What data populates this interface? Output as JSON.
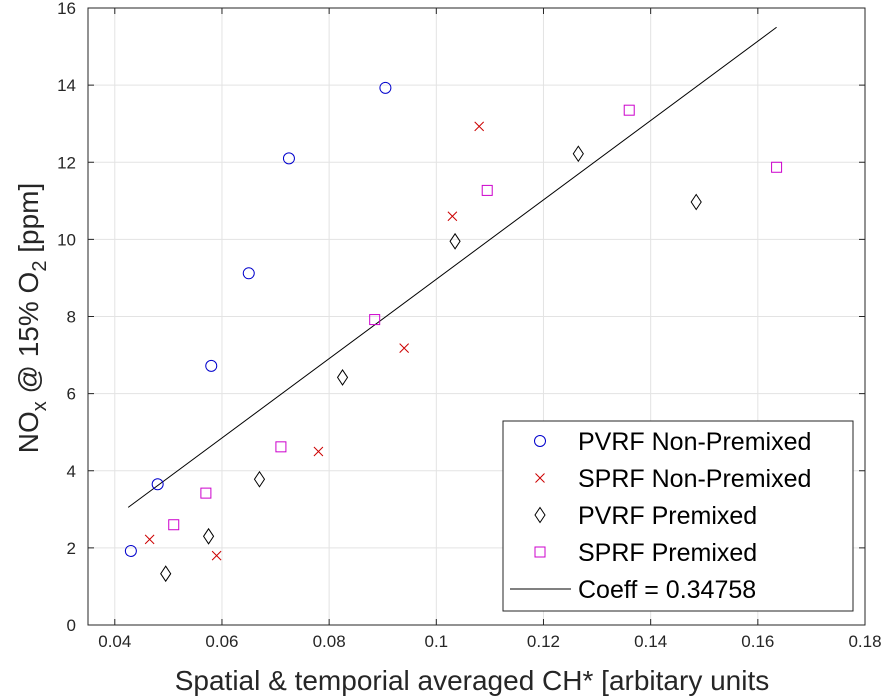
{
  "chart_data": {
    "type": "scatter",
    "title": "",
    "xlabel": "Spatial & temporial averaged CH* [arbitary units",
    "ylabel": {
      "main": "NO",
      "sub1": "x",
      "mid": " @ 15% O",
      "sub2": "2",
      "end": " [ppm]"
    },
    "xlim": [
      0.035,
      0.18
    ],
    "ylim": [
      0,
      16
    ],
    "xticks": [
      0.04,
      0.06,
      0.08,
      0.1,
      0.12,
      0.14,
      0.16,
      0.18
    ],
    "xtick_labels": [
      "0.04",
      "0.06",
      "0.08",
      "0.1",
      "0.12",
      "0.14",
      "0.16",
      "0.18"
    ],
    "yticks": [
      0,
      2,
      4,
      6,
      8,
      10,
      12,
      14,
      16
    ],
    "ytick_labels": [
      "0",
      "2",
      "4",
      "6",
      "8",
      "10",
      "12",
      "14",
      "16"
    ],
    "grid": true,
    "legend_position": "bottom-right",
    "series": [
      {
        "name": "PVRF Non-Premixed",
        "marker": "circle",
        "color": "#0000cc",
        "points": [
          [
            0.043,
            1.92
          ],
          [
            0.048,
            3.65
          ],
          [
            0.058,
            6.72
          ],
          [
            0.065,
            9.12
          ],
          [
            0.0725,
            12.1
          ],
          [
            0.0905,
            13.93
          ]
        ]
      },
      {
        "name": "SPRF Non-Premixed",
        "marker": "x",
        "color": "#cc0000",
        "points": [
          [
            0.0465,
            2.22
          ],
          [
            0.059,
            1.8
          ],
          [
            0.078,
            4.5
          ],
          [
            0.094,
            7.18
          ],
          [
            0.103,
            10.6
          ],
          [
            0.108,
            12.93
          ]
        ]
      },
      {
        "name": "PVRF Premixed",
        "marker": "diamond",
        "color": "#000000",
        "points": [
          [
            0.0495,
            1.33
          ],
          [
            0.0575,
            2.3
          ],
          [
            0.067,
            3.78
          ],
          [
            0.0825,
            6.42
          ],
          [
            0.1035,
            9.95
          ],
          [
            0.1265,
            12.22
          ],
          [
            0.1485,
            10.97
          ]
        ]
      },
      {
        "name": "SPRF Premixed",
        "marker": "square",
        "color": "#cc00cc",
        "points": [
          [
            0.051,
            2.6
          ],
          [
            0.057,
            3.42
          ],
          [
            0.071,
            4.62
          ],
          [
            0.0885,
            7.92
          ],
          [
            0.1095,
            11.27
          ],
          [
            0.136,
            13.35
          ],
          [
            0.1635,
            11.87
          ]
        ]
      }
    ],
    "fit_line": {
      "name": "Coeff = 0.34758",
      "color": "#000000",
      "start": [
        0.0425,
        3.05
      ],
      "end": [
        0.1635,
        15.5
      ]
    }
  }
}
